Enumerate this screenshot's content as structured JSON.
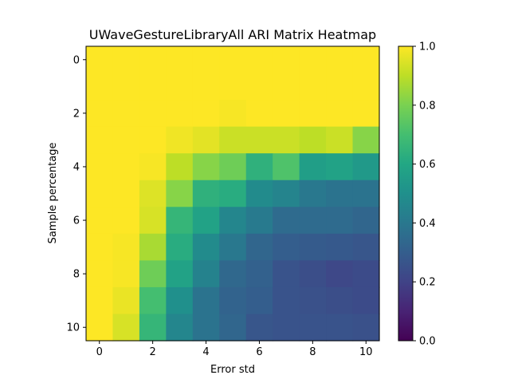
{
  "chart_data": {
    "type": "heatmap",
    "title": "UWaveGestureLibraryAll ARI Matrix Heatmap",
    "xlabel": "Error std",
    "ylabel": "Sample percentage",
    "x_ticks": [
      "0",
      "2",
      "4",
      "6",
      "8",
      "10"
    ],
    "y_ticks": [
      "0",
      "2",
      "4",
      "6",
      "8",
      "10"
    ],
    "rows": 11,
    "cols": 11,
    "colormap": "viridis",
    "vmin": 0.0,
    "vmax": 1.0,
    "colorbar_ticks": [
      "0.0",
      "0.2",
      "0.4",
      "0.6",
      "0.8",
      "1.0"
    ],
    "values": [
      [
        1.0,
        1.0,
        1.0,
        1.0,
        1.0,
        1.0,
        1.0,
        1.0,
        1.0,
        1.0,
        1.0
      ],
      [
        1.0,
        1.0,
        1.0,
        1.0,
        1.0,
        1.0,
        1.0,
        1.0,
        1.0,
        1.0,
        1.0
      ],
      [
        1.0,
        1.0,
        1.0,
        1.0,
        1.0,
        0.99,
        1.0,
        1.0,
        1.0,
        1.0,
        1.0
      ],
      [
        1.0,
        1.0,
        1.0,
        0.98,
        0.96,
        0.92,
        0.92,
        0.92,
        0.9,
        0.92,
        0.82
      ],
      [
        1.0,
        1.0,
        0.99,
        0.9,
        0.82,
        0.78,
        0.64,
        0.72,
        0.56,
        0.58,
        0.54
      ],
      [
        1.0,
        1.0,
        0.95,
        0.82,
        0.64,
        0.62,
        0.48,
        0.45,
        0.4,
        0.38,
        0.38
      ],
      [
        1.0,
        1.0,
        0.94,
        0.66,
        0.58,
        0.46,
        0.41,
        0.35,
        0.35,
        0.35,
        0.33
      ],
      [
        1.0,
        0.99,
        0.87,
        0.62,
        0.48,
        0.4,
        0.33,
        0.3,
        0.29,
        0.28,
        0.27
      ],
      [
        1.0,
        0.99,
        0.78,
        0.58,
        0.44,
        0.34,
        0.31,
        0.26,
        0.24,
        0.22,
        0.23
      ],
      [
        1.0,
        0.97,
        0.7,
        0.5,
        0.38,
        0.32,
        0.3,
        0.26,
        0.25,
        0.24,
        0.23
      ],
      [
        1.0,
        0.94,
        0.66,
        0.46,
        0.38,
        0.33,
        0.27,
        0.26,
        0.26,
        0.26,
        0.25
      ]
    ]
  }
}
